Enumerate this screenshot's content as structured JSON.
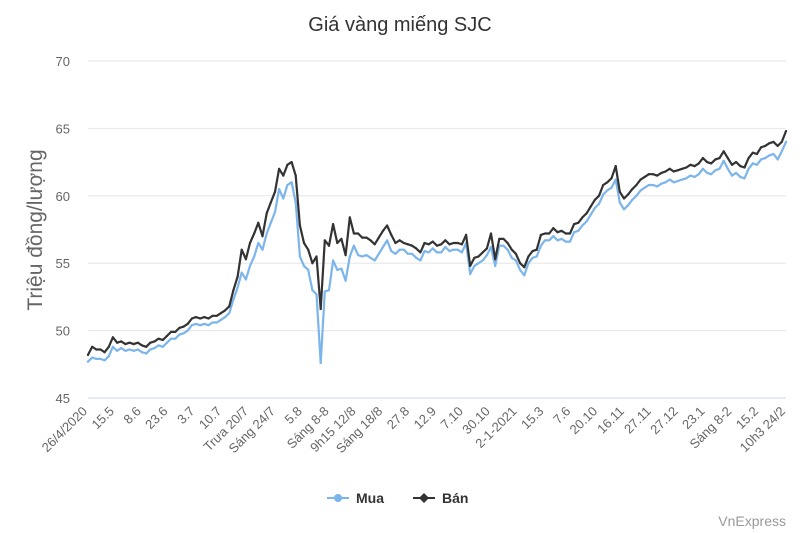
{
  "chart_data": {
    "type": "line",
    "title": "Giá vàng miếng SJC",
    "ylabel": "Triệu đồng/lượng",
    "ylim": [
      45,
      70
    ],
    "yticks": [
      45,
      50,
      55,
      60,
      65,
      70
    ],
    "grid": true,
    "legend_position": "bottom-center",
    "x_tick_labels": [
      "26/4/2020",
      "15.5",
      "8.6",
      "23.6",
      "3.7",
      "10.7",
      "Trưa 20/7",
      "Sáng 24/7",
      "5.8",
      "Sáng 8-8",
      "9h15 12/8",
      "Sáng 18/8",
      "27.8",
      "12.9",
      "7.10",
      "30.10",
      "2-1-2021",
      "15.3",
      "7.6",
      "20.10",
      "16.11",
      "27.11",
      "27.12",
      "23.1",
      "Sáng 8-2",
      "15.2",
      "10h3 24/2"
    ],
    "series": [
      {
        "name": "Mua",
        "color": "#7cb5ec",
        "values": [
          47.7,
          48.0,
          47.9,
          47.9,
          47.8,
          48.1,
          48.8,
          48.5,
          48.7,
          48.5,
          48.6,
          48.5,
          48.6,
          48.4,
          48.3,
          48.6,
          48.7,
          48.9,
          48.8,
          49.1,
          49.4,
          49.4,
          49.7,
          49.8,
          50.0,
          50.4,
          50.5,
          50.4,
          50.5,
          50.4,
          50.6,
          50.6,
          50.8,
          51.0,
          51.3,
          52.3,
          53.2,
          54.3,
          53.8,
          54.8,
          55.5,
          56.5,
          56.0,
          57.2,
          58.0,
          58.8,
          60.5,
          59.8,
          60.8,
          61.0,
          59.5,
          55.5,
          54.8,
          54.5,
          53.0,
          52.7,
          47.6,
          52.9,
          53.0,
          55.2,
          54.5,
          54.6,
          53.7,
          55.5,
          56.3,
          55.6,
          55.5,
          55.6,
          55.4,
          55.2,
          55.7,
          56.2,
          56.7,
          55.9,
          55.7,
          56.0,
          56.0,
          55.7,
          55.7,
          55.4,
          55.2,
          55.9,
          55.8,
          56.1,
          55.8,
          55.8,
          56.2,
          55.9,
          56.0,
          56.0,
          55.8,
          56.5,
          54.2,
          54.8,
          55.0,
          55.2,
          55.6,
          56.2,
          54.8,
          56.3,
          56.3,
          56.0,
          55.4,
          55.2,
          54.5,
          54.1,
          55.0,
          55.4,
          55.5,
          56.3,
          56.7,
          56.7,
          57.0,
          56.7,
          56.8,
          56.6,
          56.6,
          57.3,
          57.4,
          57.8,
          58.1,
          58.6,
          59.1,
          59.4,
          60.1,
          60.4,
          60.6,
          61.2,
          59.5,
          59.0,
          59.3,
          59.7,
          60.0,
          60.4,
          60.6,
          60.8,
          60.8,
          60.7,
          60.9,
          61.0,
          61.2,
          61.0,
          61.1,
          61.2,
          61.3,
          61.5,
          61.4,
          61.6,
          62.0,
          61.7,
          61.6,
          61.9,
          62.0,
          62.6,
          62.0,
          61.5,
          61.7,
          61.4,
          61.3,
          62.0,
          62.4,
          62.3,
          62.7,
          62.8,
          63.0,
          63.1,
          62.7,
          63.3,
          64.0
        ]
      },
      {
        "name": "Bán",
        "color": "#333333",
        "values": [
          48.2,
          48.8,
          48.6,
          48.6,
          48.4,
          48.8,
          49.5,
          49.1,
          49.2,
          49.0,
          49.1,
          49.0,
          49.1,
          48.9,
          48.8,
          49.1,
          49.2,
          49.4,
          49.3,
          49.6,
          49.9,
          49.9,
          50.2,
          50.3,
          50.5,
          50.9,
          51.0,
          50.9,
          51.0,
          50.9,
          51.1,
          51.1,
          51.3,
          51.5,
          51.8,
          53.0,
          54.0,
          56.0,
          55.3,
          56.5,
          57.2,
          58.0,
          57.0,
          58.7,
          59.5,
          60.3,
          62.0,
          61.5,
          62.3,
          62.5,
          61.5,
          57.8,
          56.5,
          56.0,
          55.0,
          55.5,
          51.6,
          56.7,
          56.3,
          57.9,
          56.5,
          56.8,
          55.6,
          58.4,
          57.2,
          57.2,
          56.9,
          56.9,
          56.7,
          56.4,
          56.9,
          57.4,
          57.8,
          57.1,
          56.5,
          56.7,
          56.5,
          56.4,
          56.3,
          56.1,
          55.8,
          56.5,
          56.4,
          56.6,
          56.3,
          56.4,
          56.7,
          56.4,
          56.5,
          56.5,
          56.4,
          57.1,
          54.8,
          55.4,
          55.5,
          55.8,
          56.1,
          57.2,
          55.3,
          56.8,
          56.8,
          56.5,
          56.0,
          55.7,
          55.0,
          54.7,
          55.5,
          55.9,
          56.0,
          57.1,
          57.2,
          57.2,
          57.6,
          57.3,
          57.4,
          57.2,
          57.2,
          57.9,
          58.0,
          58.4,
          58.7,
          59.2,
          59.7,
          60.0,
          60.8,
          61.0,
          61.3,
          62.2,
          60.3,
          59.8,
          60.1,
          60.5,
          60.8,
          61.2,
          61.4,
          61.6,
          61.6,
          61.5,
          61.7,
          61.8,
          62.0,
          61.8,
          61.9,
          62.0,
          62.1,
          62.3,
          62.2,
          62.4,
          62.8,
          62.5,
          62.4,
          62.7,
          62.8,
          63.3,
          62.8,
          62.3,
          62.5,
          62.2,
          62.1,
          62.8,
          63.2,
          63.1,
          63.6,
          63.7,
          63.9,
          64.0,
          63.7,
          64.0,
          64.8
        ]
      }
    ]
  },
  "source": "VnExpress"
}
